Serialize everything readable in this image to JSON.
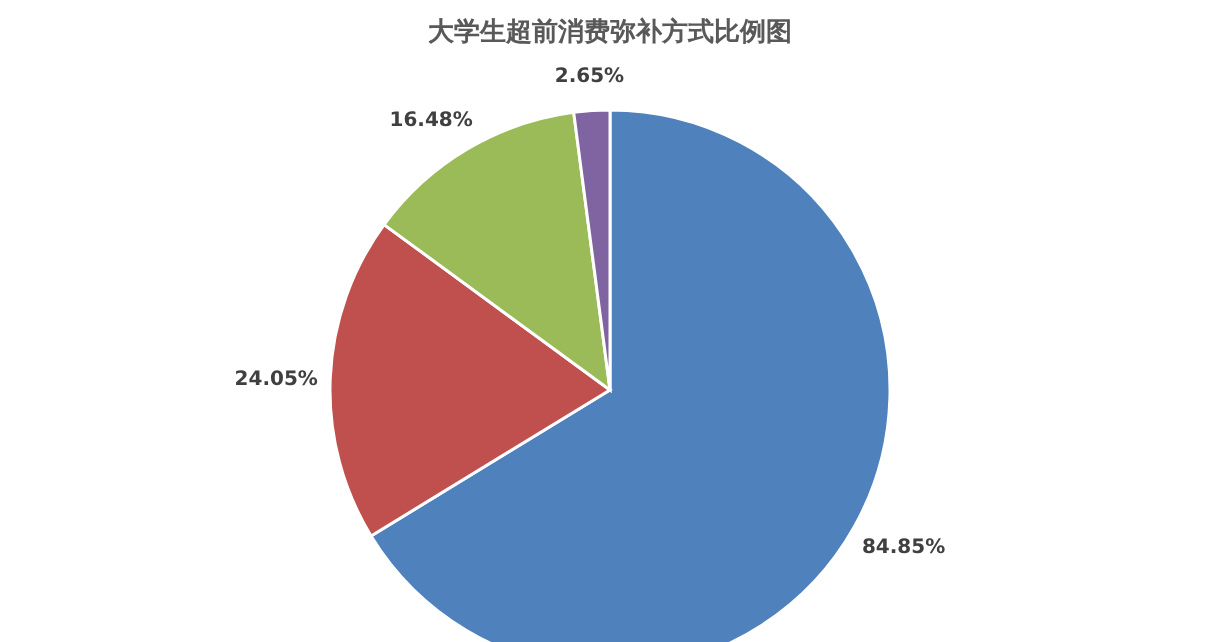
{
  "chart_data": {
    "type": "pie",
    "title": "大学生超前消费弥补方式比例图",
    "categories": [
      null,
      null,
      null,
      null
    ],
    "values": [
      84.85,
      24.05,
      16.48,
      2.65
    ],
    "colors": [
      "#4f81bd",
      "#c0504d",
      "#9bbb59",
      "#8064a2"
    ],
    "value_labels": [
      "84.85%",
      "24.05%",
      "16.48%",
      "2.65%"
    ]
  }
}
